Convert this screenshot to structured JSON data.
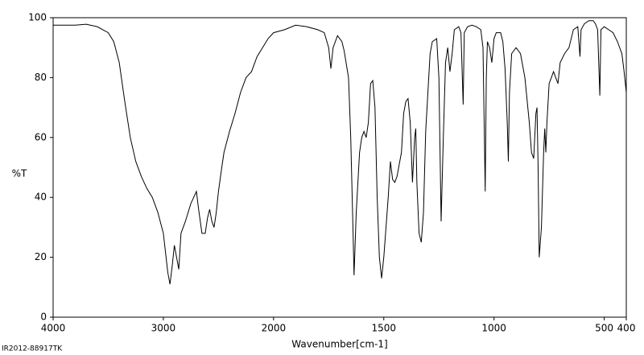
{
  "chart_data": {
    "type": "line",
    "ylabel": "%T",
    "xlabel": "Wavenumber[cm-1]",
    "footer": "IR2012-88917TK",
    "color": "#000000",
    "xlim": [
      4000,
      400
    ],
    "xscale_break": 2000,
    "xscale_factor": 2,
    "xticks": [
      4000,
      3000,
      2000,
      1500,
      1000,
      500,
      400
    ],
    "ylim": [
      0,
      100
    ],
    "yticks": [
      0,
      20,
      40,
      60,
      80,
      100
    ],
    "grid": false,
    "x": [
      4000,
      3800,
      3700,
      3600,
      3500,
      3450,
      3400,
      3350,
      3300,
      3250,
      3200,
      3150,
      3100,
      3050,
      3000,
      2960,
      2940,
      2920,
      2900,
      2880,
      2860,
      2840,
      2800,
      2750,
      2700,
      2680,
      2650,
      2620,
      2600,
      2580,
      2560,
      2540,
      2520,
      2500,
      2470,
      2450,
      2400,
      2350,
      2300,
      2250,
      2200,
      2150,
      2100,
      2050,
      2000,
      1950,
      1900,
      1850,
      1800,
      1770,
      1750,
      1740,
      1730,
      1710,
      1690,
      1680,
      1660,
      1650,
      1640,
      1635,
      1625,
      1610,
      1600,
      1590,
      1580,
      1570,
      1560,
      1550,
      1540,
      1530,
      1520,
      1510,
      1500,
      1490,
      1480,
      1470,
      1460,
      1450,
      1440,
      1420,
      1410,
      1400,
      1390,
      1380,
      1370,
      1360,
      1355,
      1350,
      1340,
      1330,
      1320,
      1310,
      1300,
      1290,
      1280,
      1260,
      1250,
      1240,
      1230,
      1220,
      1210,
      1200,
      1190,
      1180,
      1160,
      1150,
      1140,
      1135,
      1120,
      1100,
      1080,
      1060,
      1050,
      1040,
      1035,
      1030,
      1020,
      1010,
      1000,
      990,
      970,
      960,
      950,
      940,
      935,
      930,
      920,
      900,
      880,
      860,
      840,
      830,
      820,
      810,
      805,
      800,
      795,
      785,
      775,
      770,
      765,
      760,
      750,
      740,
      730,
      720,
      710,
      700,
      680,
      660,
      640,
      620,
      610,
      605,
      590,
      570,
      550,
      540,
      530,
      520,
      515,
      500,
      480,
      460,
      440,
      420,
      410,
      400
    ],
    "values": [
      97.5,
      97.5,
      97.8,
      97,
      95,
      92,
      85,
      72,
      60,
      52,
      47,
      43,
      40,
      35,
      28,
      15,
      11,
      17,
      24,
      20,
      16,
      28,
      32,
      38,
      42,
      36,
      28,
      28,
      33,
      36,
      32,
      30,
      35,
      42,
      50,
      55,
      62,
      68,
      75,
      80,
      82,
      87,
      90,
      93,
      95,
      96,
      97.5,
      97,
      96,
      95,
      90,
      83,
      90,
      94,
      92,
      89,
      80,
      60,
      30,
      14,
      35,
      55,
      60,
      62,
      60,
      65,
      78,
      79,
      70,
      40,
      20,
      13,
      20,
      30,
      40,
      52,
      46,
      45,
      47,
      55,
      68,
      72,
      73,
      65,
      45,
      60,
      63,
      45,
      28,
      25,
      35,
      62,
      75,
      88,
      92,
      93,
      80,
      32,
      60,
      85,
      90,
      82,
      88,
      96,
      97,
      95,
      71,
      95,
      97,
      97.5,
      97,
      96,
      90,
      42,
      80,
      92,
      90,
      85,
      93,
      95,
      95,
      92,
      83,
      65,
      52,
      75,
      88,
      90,
      88,
      80,
      65,
      55,
      53,
      68,
      70,
      50,
      20,
      30,
      55,
      63,
      55,
      65,
      78,
      80,
      82,
      80,
      78,
      85,
      88,
      90,
      96,
      97,
      87,
      96,
      98,
      99,
      99,
      98,
      96,
      74,
      96,
      97,
      96,
      95,
      92,
      88,
      82,
      75
    ]
  }
}
